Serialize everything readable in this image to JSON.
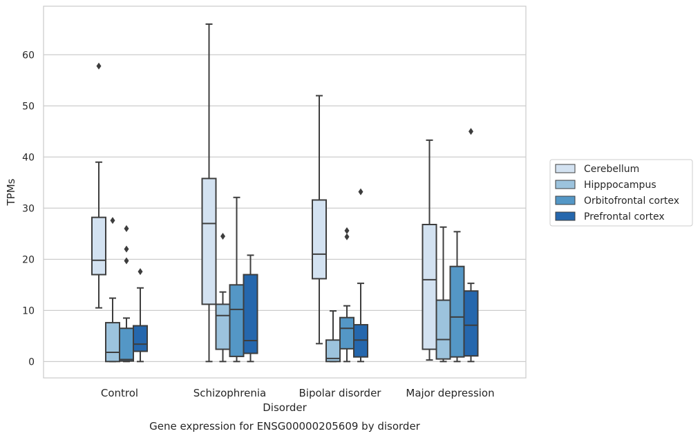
{
  "chart_data": {
    "type": "boxplot",
    "title": "",
    "caption": "Gene expression for ENSG00000205609 by disorder",
    "xlabel": "Disorder",
    "ylabel": "TPMs",
    "ylim": [
      -3.2,
      69.5
    ],
    "yticks": [
      0,
      10,
      20,
      30,
      40,
      50,
      60
    ],
    "grid": true,
    "legend_position": "right",
    "categories": [
      "Control",
      "Schizophrenia",
      "Bipolar disorder",
      "Major depression"
    ],
    "series": [
      {
        "name": "Cerebellum",
        "color": "#d3e2f1",
        "boxes": [
          {
            "whislo": 10.5,
            "q1": 17.0,
            "med": 19.8,
            "q3": 28.2,
            "whishi": 39.0,
            "fliers": [
              57.8
            ]
          },
          {
            "whislo": 0.0,
            "q1": 11.2,
            "med": 27.0,
            "q3": 35.8,
            "whishi": 66.0,
            "fliers": []
          },
          {
            "whislo": 3.5,
            "q1": 16.2,
            "med": 21.0,
            "q3": 31.6,
            "whishi": 52.0,
            "fliers": []
          },
          {
            "whislo": 0.3,
            "q1": 2.4,
            "med": 16.0,
            "q3": 26.8,
            "whishi": 43.3,
            "fliers": []
          }
        ]
      },
      {
        "name": "Hipppocampus",
        "color": "#9cc3dd",
        "boxes": [
          {
            "whislo": 0.0,
            "q1": 0.0,
            "med": 1.8,
            "q3": 7.6,
            "whishi": 12.4,
            "fliers": [
              27.6
            ]
          },
          {
            "whislo": 0.0,
            "q1": 2.4,
            "med": 9.0,
            "q3": 11.2,
            "whishi": 13.6,
            "fliers": [
              24.5
            ]
          },
          {
            "whislo": 0.0,
            "q1": 0.0,
            "med": 0.6,
            "q3": 4.2,
            "whishi": 9.9,
            "fliers": []
          },
          {
            "whislo": 0.0,
            "q1": 0.5,
            "med": 4.3,
            "q3": 12.0,
            "whishi": 26.3,
            "fliers": []
          }
        ]
      },
      {
        "name": "Orbitofrontal cortex",
        "color": "#5497c6",
        "boxes": [
          {
            "whislo": 0.0,
            "q1": 0.1,
            "med": 0.4,
            "q3": 6.5,
            "whishi": 8.5,
            "fliers": [
              19.7,
              22.0,
              26.0
            ]
          },
          {
            "whislo": 0.0,
            "q1": 1.0,
            "med": 10.2,
            "q3": 15.0,
            "whishi": 32.1,
            "fliers": []
          },
          {
            "whislo": 0.0,
            "q1": 2.5,
            "med": 6.5,
            "q3": 8.6,
            "whishi": 10.9,
            "fliers": [
              24.4,
              25.6
            ]
          },
          {
            "whislo": 0.0,
            "q1": 0.9,
            "med": 8.7,
            "q3": 18.6,
            "whishi": 25.4,
            "fliers": []
          }
        ]
      },
      {
        "name": "Prefrontal cortex",
        "color": "#2567ad",
        "boxes": [
          {
            "whislo": 0.0,
            "q1": 2.0,
            "med": 3.4,
            "q3": 7.0,
            "whishi": 14.4,
            "fliers": [
              17.6
            ]
          },
          {
            "whislo": 0.0,
            "q1": 1.6,
            "med": 4.1,
            "q3": 17.0,
            "whishi": 20.8,
            "fliers": []
          },
          {
            "whislo": 0.0,
            "q1": 0.9,
            "med": 4.2,
            "q3": 7.2,
            "whishi": 15.3,
            "fliers": [
              33.2
            ]
          },
          {
            "whislo": 0.0,
            "q1": 1.1,
            "med": 7.1,
            "q3": 13.8,
            "whishi": 15.3,
            "fliers": [
              45.0
            ]
          }
        ]
      }
    ]
  }
}
